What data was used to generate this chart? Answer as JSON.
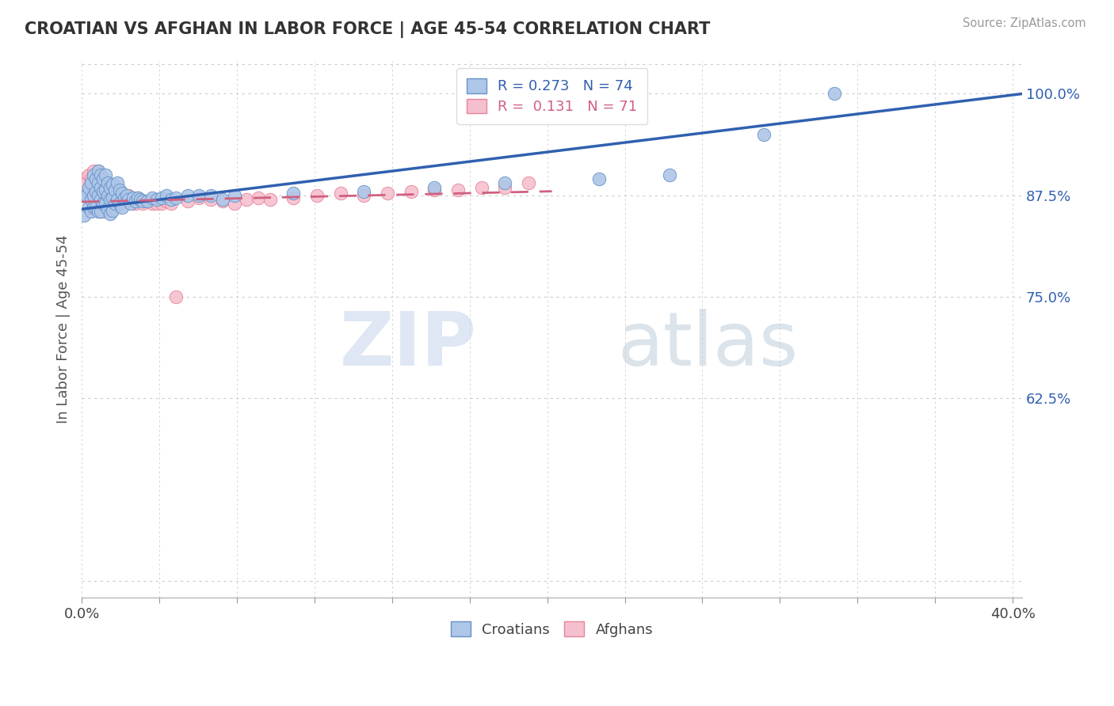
{
  "title": "CROATIAN VS AFGHAN IN LABOR FORCE | AGE 45-54 CORRELATION CHART",
  "source": "Source: ZipAtlas.com",
  "ylabel": "In Labor Force | Age 45-54",
  "xlim": [
    0.0,
    0.4
  ],
  "ylim": [
    0.38,
    1.04
  ],
  "ytick_positions": [
    1.0,
    0.875,
    0.75,
    0.625
  ],
  "ytick_labels": [
    "100.0%",
    "87.5%",
    "75.0%",
    "62.5%"
  ],
  "legend_r_croatian": "0.273",
  "legend_n_croatian": "74",
  "legend_r_afghan": "0.131",
  "legend_n_afghan": "71",
  "legend_label_croatian": "Croatians",
  "legend_label_afghan": "Afghans",
  "blue_color": "#aec6e8",
  "pink_color": "#f5c0ce",
  "blue_edge_color": "#6693c8",
  "pink_edge_color": "#e8849a",
  "blue_line_color": "#3060b0",
  "pink_line_color": "#d06080",
  "watermark_zip": "ZIP",
  "watermark_atlas": "atlas",
  "watermark_color_zip": "#d0dff0",
  "watermark_color_atlas": "#c0c8d8",
  "background_color": "#ffffff",
  "croatian_x": [
    0.001,
    0.001,
    0.002,
    0.003,
    0.003,
    0.004,
    0.004,
    0.004,
    0.005,
    0.005,
    0.005,
    0.006,
    0.006,
    0.006,
    0.007,
    0.007,
    0.007,
    0.007,
    0.008,
    0.008,
    0.008,
    0.008,
    0.009,
    0.009,
    0.009,
    0.01,
    0.01,
    0.01,
    0.011,
    0.011,
    0.011,
    0.012,
    0.012,
    0.012,
    0.013,
    0.013,
    0.013,
    0.014,
    0.014,
    0.015,
    0.015,
    0.016,
    0.016,
    0.017,
    0.017,
    0.018,
    0.019,
    0.02,
    0.021,
    0.022,
    0.023,
    0.024,
    0.025,
    0.026,
    0.028,
    0.03,
    0.032,
    0.034,
    0.036,
    0.038,
    0.04,
    0.045,
    0.05,
    0.055,
    0.06,
    0.065,
    0.09,
    0.12,
    0.15,
    0.18,
    0.22,
    0.25,
    0.29,
    0.32
  ],
  "croatian_y": [
    0.875,
    0.85,
    0.875,
    0.885,
    0.86,
    0.89,
    0.87,
    0.855,
    0.9,
    0.875,
    0.86,
    0.895,
    0.88,
    0.86,
    0.905,
    0.89,
    0.875,
    0.855,
    0.9,
    0.885,
    0.87,
    0.855,
    0.895,
    0.88,
    0.865,
    0.9,
    0.882,
    0.865,
    0.89,
    0.875,
    0.858,
    0.885,
    0.87,
    0.852,
    0.888,
    0.872,
    0.856,
    0.882,
    0.865,
    0.89,
    0.87,
    0.882,
    0.865,
    0.878,
    0.86,
    0.872,
    0.875,
    0.87,
    0.865,
    0.872,
    0.868,
    0.872,
    0.87,
    0.868,
    0.868,
    0.872,
    0.87,
    0.872,
    0.875,
    0.87,
    0.872,
    0.875,
    0.875,
    0.875,
    0.87,
    0.875,
    0.878,
    0.88,
    0.885,
    0.89,
    0.895,
    0.9,
    0.95,
    1.0
  ],
  "afghan_x": [
    0.001,
    0.001,
    0.002,
    0.003,
    0.003,
    0.004,
    0.004,
    0.004,
    0.005,
    0.005,
    0.005,
    0.006,
    0.006,
    0.006,
    0.007,
    0.007,
    0.007,
    0.008,
    0.008,
    0.008,
    0.009,
    0.009,
    0.009,
    0.01,
    0.01,
    0.011,
    0.011,
    0.012,
    0.012,
    0.013,
    0.013,
    0.014,
    0.015,
    0.015,
    0.016,
    0.017,
    0.018,
    0.019,
    0.02,
    0.021,
    0.022,
    0.023,
    0.024,
    0.025,
    0.026,
    0.028,
    0.03,
    0.032,
    0.034,
    0.036,
    0.038,
    0.04,
    0.045,
    0.05,
    0.055,
    0.06,
    0.065,
    0.07,
    0.075,
    0.08,
    0.09,
    0.1,
    0.11,
    0.12,
    0.13,
    0.14,
    0.15,
    0.16,
    0.17,
    0.18,
    0.19
  ],
  "afghan_y": [
    0.895,
    0.875,
    0.89,
    0.9,
    0.878,
    0.895,
    0.875,
    0.858,
    0.905,
    0.885,
    0.865,
    0.9,
    0.88,
    0.86,
    0.905,
    0.885,
    0.865,
    0.895,
    0.875,
    0.855,
    0.89,
    0.872,
    0.855,
    0.885,
    0.865,
    0.882,
    0.862,
    0.878,
    0.858,
    0.878,
    0.858,
    0.872,
    0.882,
    0.862,
    0.868,
    0.872,
    0.872,
    0.868,
    0.875,
    0.868,
    0.868,
    0.865,
    0.872,
    0.868,
    0.865,
    0.868,
    0.865,
    0.865,
    0.865,
    0.868,
    0.865,
    0.75,
    0.868,
    0.872,
    0.87,
    0.868,
    0.865,
    0.87,
    0.872,
    0.87,
    0.872,
    0.875,
    0.878,
    0.875,
    0.878,
    0.88,
    0.882,
    0.882,
    0.885,
    0.885,
    0.89
  ],
  "blue_trend_x": [
    0.0,
    0.4
  ],
  "blue_trend_y": [
    0.858,
    1.0
  ],
  "pink_trend_x": [
    0.0,
    0.2
  ],
  "pink_trend_y": [
    0.867,
    0.88
  ]
}
